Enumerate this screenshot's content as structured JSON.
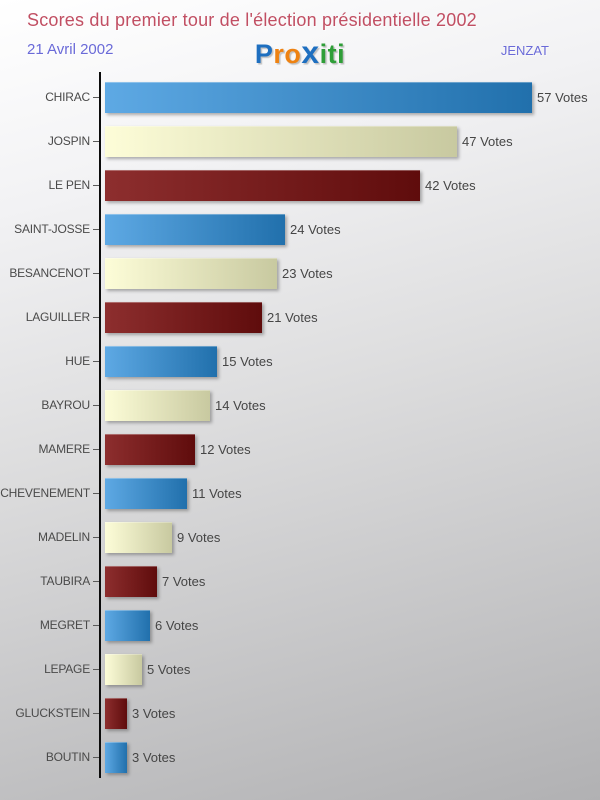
{
  "header": {
    "title": "Scores du premier tour de l'élection présidentielle 2002",
    "date": "21 Avril 2002",
    "place": "JENZAT",
    "logo": {
      "name": "Proxiti",
      "letters": [
        {
          "ch": "P",
          "color": "#1e6fc0",
          "bold_x": false
        },
        {
          "ch": "r",
          "color": "#ee8212",
          "bold_x": false
        },
        {
          "ch": "o",
          "color": "#ee8212",
          "bold_x": false
        },
        {
          "ch": "x",
          "color": "#1e6fc0",
          "bold_x": true
        },
        {
          "ch": "i",
          "color": "#2f9e38",
          "bold_x": false
        },
        {
          "ch": "t",
          "color": "#2f9e38",
          "bold_x": false
        },
        {
          "ch": "i",
          "color": "#2f9e38",
          "bold_x": false
        }
      ]
    }
  },
  "chart_data": {
    "type": "bar",
    "orientation": "horizontal",
    "title": "Scores du premier tour de l'élection présidentielle 2002",
    "categories": [
      "CHIRAC",
      "JOSPIN",
      "LE PEN",
      "SAINT-JOSSE",
      "BESANCENOT",
      "LAGUILLER",
      "HUE",
      "BAYROU",
      "MAMERE",
      "CHEVENEMENT",
      "MADELIN",
      "TAUBIRA",
      "MEGRET",
      "LEPAGE",
      "GLUCKSTEIN",
      "BOUTIN"
    ],
    "values": [
      57,
      47,
      42,
      24,
      23,
      21,
      15,
      14,
      12,
      11,
      9,
      7,
      6,
      5,
      3,
      3
    ],
    "value_suffix": "Votes",
    "xlim": [
      0,
      57
    ],
    "grid": false,
    "legend": false,
    "bar_color_cycle": [
      {
        "name": "blue",
        "from": "#5ea9e4",
        "to": "#2170ac"
      },
      {
        "name": "cream",
        "from": "#fdfdd8",
        "to": "#c8c9a0"
      },
      {
        "name": "maroon",
        "from": "#8d2e2e",
        "to": "#5f0c0c"
      }
    ]
  },
  "colors": {
    "title": "#c14f63",
    "subheader": "#6a6ad8",
    "label": "#4a4a4a",
    "value": "#454545",
    "axis": "#0c0c0c"
  }
}
